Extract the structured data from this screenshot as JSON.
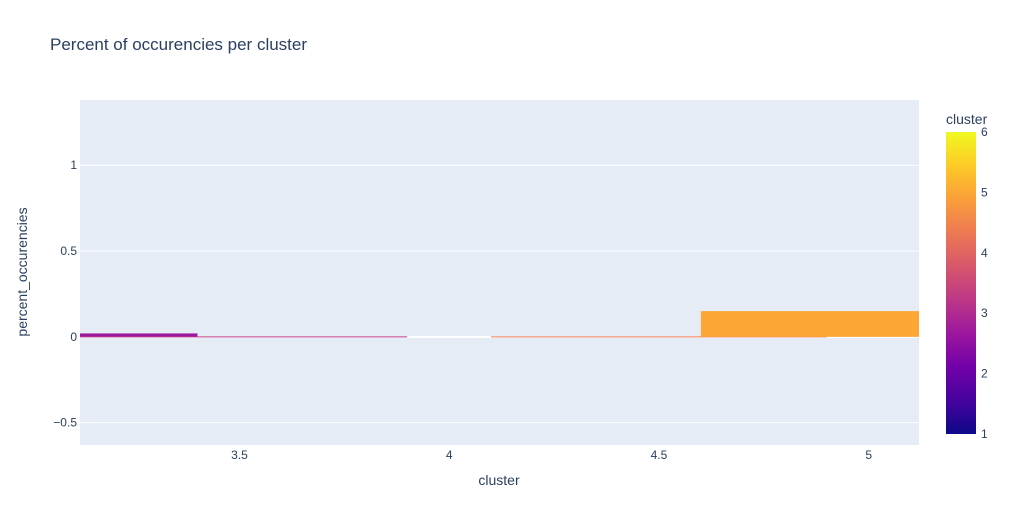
{
  "chart_data": {
    "type": "bar",
    "title": "Percent of occurencies per cluster",
    "xlabel": "cluster",
    "ylabel": "percent_occurencies",
    "xlim": [
      3.12,
      5.12
    ],
    "ylim": [
      -0.63,
      1.38
    ],
    "x_ticks": [
      {
        "value": 3.5,
        "label": "3.5"
      },
      {
        "value": 4,
        "label": "4"
      },
      {
        "value": 4.5,
        "label": "4.5"
      },
      {
        "value": 5,
        "label": "5"
      }
    ],
    "y_ticks": [
      {
        "value": -0.5,
        "label": "−0.5"
      },
      {
        "value": 0,
        "label": "0"
      },
      {
        "value": 0.5,
        "label": "0.5"
      },
      {
        "value": 1,
        "label": "1"
      }
    ],
    "bars": [
      {
        "x": 3,
        "y": 0.02,
        "cluster": 3,
        "color": "#9c179e"
      },
      {
        "x": 3.5,
        "y": 0.0,
        "cluster": 3.5,
        "color": "#bd3786"
      },
      {
        "x": 4.5,
        "y": 0.0,
        "cluster": 4.5,
        "color": "#ed7953"
      },
      {
        "x": 5,
        "y": 0.15,
        "cluster": 5,
        "color": "#fca636"
      }
    ],
    "colorbar": {
      "title": "cluster",
      "range": [
        1,
        6
      ],
      "ticks": [
        {
          "value": 1,
          "label": "1"
        },
        {
          "value": 2,
          "label": "2"
        },
        {
          "value": 3,
          "label": "3"
        },
        {
          "value": 4,
          "label": "4"
        },
        {
          "value": 5,
          "label": "5"
        },
        {
          "value": 6,
          "label": "6"
        }
      ],
      "colorscale": [
        "#0d0887",
        "#46039f",
        "#7201a8",
        "#9c179e",
        "#bd3786",
        "#d8576b",
        "#ed7953",
        "#fb9f3a",
        "#fdca26",
        "#f0f921"
      ]
    },
    "colors": {
      "plot_bg": "#e5ecf6",
      "grid": "#ffffff",
      "text": "#2a3f5f"
    },
    "grid": true
  }
}
